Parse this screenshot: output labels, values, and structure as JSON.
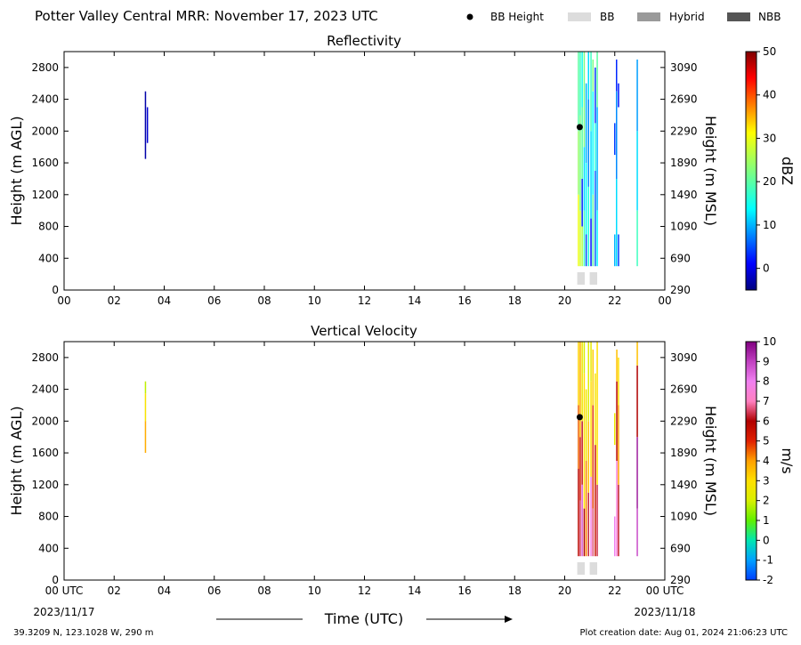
{
  "header": {
    "title": "Potter Valley Central MRR:  November 17, 2023 UTC"
  },
  "legend": {
    "items": [
      {
        "label": "BB Height",
        "color": "#000000",
        "kind": "dot"
      },
      {
        "label": "BB",
        "color": "#dcdcdc",
        "kind": "patch"
      },
      {
        "label": "Hybrid",
        "color": "#9a9a9a",
        "kind": "patch"
      },
      {
        "label": "NBB",
        "color": "#555555",
        "kind": "patch"
      }
    ]
  },
  "footer": {
    "location": "39.3209 N, 123.1028 W, 290 m",
    "creation": "Plot creation date: Aug 01, 2024 21:06:23 UTC",
    "time_label": "Time (UTC)",
    "start_date": "2023/11/17",
    "end_date": "2023/11/18"
  },
  "chart_data": [
    {
      "type": "heatmap",
      "title": "Reflectivity",
      "ylabel": "Height (m AGL)",
      "ylabel_right": "Height (m MSL)",
      "x_ticks": [
        "00",
        "02",
        "04",
        "06",
        "08",
        "10",
        "12",
        "14",
        "16",
        "18",
        "20",
        "22",
        "00"
      ],
      "xlim_hours": [
        0,
        24
      ],
      "ylim": [
        0,
        3000
      ],
      "y_ticks": [
        0,
        400,
        800,
        1200,
        1600,
        2000,
        2400,
        2800
      ],
      "y_ticks_right": [
        "290",
        "690",
        "1090",
        "1490",
        "1890",
        "2290",
        "2690",
        "3090"
      ],
      "colorbar": {
        "label": "dBZ",
        "min": -5,
        "max": 50,
        "ticks": [
          0,
          10,
          20,
          30,
          40,
          50
        ],
        "colormap": "jet"
      },
      "bright_band_height": {
        "hour": 20.6,
        "height": 2050
      },
      "bb_class_markers": [
        {
          "hour_start": 20.5,
          "hour_end": 20.8,
          "class": "BB"
        },
        {
          "hour_start": 21.0,
          "hour_end": 21.3,
          "class": "BB"
        }
      ],
      "profiles": [
        {
          "hour": 3.25,
          "width_h": 0.05,
          "segments": [
            {
              "y0": 1650,
              "y1": 2500,
              "value": -3
            }
          ]
        },
        {
          "hour": 3.33,
          "width_h": 0.04,
          "segments": [
            {
              "y0": 1850,
              "y1": 2300,
              "value": -1
            }
          ]
        },
        {
          "hour": 20.55,
          "width_h": 0.05,
          "segments": [
            {
              "y0": 300,
              "y1": 1200,
              "value": 30
            },
            {
              "y0": 1200,
              "y1": 2000,
              "value": 24
            },
            {
              "y0": 2000,
              "y1": 3000,
              "value": 20
            }
          ]
        },
        {
          "hour": 20.62,
          "width_h": 0.05,
          "segments": [
            {
              "y0": 300,
              "y1": 1000,
              "value": 28
            },
            {
              "y0": 1000,
              "y1": 2200,
              "value": 22
            },
            {
              "y0": 2200,
              "y1": 3000,
              "value": 18
            }
          ]
        },
        {
          "hour": 20.7,
          "width_h": 0.05,
          "segments": [
            {
              "y0": 300,
              "y1": 800,
              "value": 26
            },
            {
              "y0": 800,
              "y1": 1400,
              "value": 3
            },
            {
              "y0": 1400,
              "y1": 2300,
              "value": 20
            },
            {
              "y0": 2300,
              "y1": 3000,
              "value": 15
            }
          ]
        },
        {
          "hour": 20.78,
          "width_h": 0.05,
          "segments": [
            {
              "y0": 300,
              "y1": 1000,
              "value": 18
            },
            {
              "y0": 1000,
              "y1": 1800,
              "value": 12
            },
            {
              "y0": 1800,
              "y1": 3000,
              "value": 22
            }
          ]
        },
        {
          "hour": 20.86,
          "width_h": 0.05,
          "segments": [
            {
              "y0": 300,
              "y1": 700,
              "value": 5
            },
            {
              "y0": 700,
              "y1": 1600,
              "value": 14
            },
            {
              "y0": 1600,
              "y1": 2600,
              "value": 10
            }
          ]
        },
        {
          "hour": 20.95,
          "width_h": 0.05,
          "segments": [
            {
              "y0": 300,
              "y1": 1300,
              "value": 16
            },
            {
              "y0": 1300,
              "y1": 2400,
              "value": 8
            },
            {
              "y0": 2400,
              "y1": 3000,
              "value": 12
            }
          ]
        },
        {
          "hour": 21.05,
          "width_h": 0.05,
          "segments": [
            {
              "y0": 300,
              "y1": 900,
              "value": 2
            },
            {
              "y0": 900,
              "y1": 2000,
              "value": 12
            },
            {
              "y0": 2000,
              "y1": 3000,
              "value": 18
            }
          ]
        },
        {
          "hour": 21.13,
          "width_h": 0.05,
          "segments": [
            {
              "y0": 300,
              "y1": 1200,
              "value": 20
            },
            {
              "y0": 1200,
              "y1": 2500,
              "value": 14
            },
            {
              "y0": 2500,
              "y1": 2900,
              "value": 22
            }
          ]
        },
        {
          "hour": 21.22,
          "width_h": 0.05,
          "segments": [
            {
              "y0": 300,
              "y1": 1500,
              "value": 6
            },
            {
              "y0": 1500,
              "y1": 2100,
              "value": 16
            },
            {
              "y0": 2100,
              "y1": 2800,
              "value": 4
            }
          ]
        },
        {
          "hour": 21.3,
          "width_h": 0.05,
          "segments": [
            {
              "y0": 300,
              "y1": 1000,
              "value": 14
            },
            {
              "y0": 1000,
              "y1": 2300,
              "value": 10
            },
            {
              "y0": 2300,
              "y1": 3000,
              "value": 20
            }
          ]
        },
        {
          "hour": 22.0,
          "width_h": 0.05,
          "segments": [
            {
              "y0": 300,
              "y1": 700,
              "value": 10
            },
            {
              "y0": 1700,
              "y1": 2100,
              "value": 4
            }
          ]
        },
        {
          "hour": 22.07,
          "width_h": 0.05,
          "segments": [
            {
              "y0": 300,
              "y1": 1400,
              "value": 12
            },
            {
              "y0": 1400,
              "y1": 2500,
              "value": 8
            },
            {
              "y0": 2500,
              "y1": 2900,
              "value": 3
            }
          ]
        },
        {
          "hour": 22.15,
          "width_h": 0.05,
          "segments": [
            {
              "y0": 300,
              "y1": 700,
              "value": 4
            },
            {
              "y0": 2300,
              "y1": 2600,
              "value": 2
            }
          ]
        },
        {
          "hour": 22.9,
          "width_h": 0.05,
          "segments": [
            {
              "y0": 300,
              "y1": 1000,
              "value": 18
            },
            {
              "y0": 1000,
              "y1": 2000,
              "value": 12
            },
            {
              "y0": 2000,
              "y1": 2900,
              "value": 9
            }
          ]
        }
      ]
    },
    {
      "type": "heatmap",
      "title": "Vertical Velocity",
      "ylabel": "Height (m AGL)",
      "ylabel_right": "Height (m MSL)",
      "x_ticks": [
        "00 UTC",
        "02",
        "04",
        "06",
        "08",
        "10",
        "12",
        "14",
        "16",
        "18",
        "20",
        "22",
        "00 UTC"
      ],
      "xlim_hours": [
        0,
        24
      ],
      "ylim": [
        0,
        3000
      ],
      "y_ticks": [
        0,
        400,
        800,
        1200,
        1600,
        2000,
        2400,
        2800
      ],
      "y_ticks_right": [
        "290",
        "690",
        "1090",
        "1490",
        "1890",
        "2290",
        "2690",
        "3090"
      ],
      "colorbar": {
        "label": "m/s",
        "min": -2,
        "max": 10,
        "ticks": [
          -2,
          -1,
          0,
          1,
          2,
          3,
          4,
          5,
          6,
          7,
          8,
          9,
          10
        ],
        "colormap": "velocity"
      },
      "bright_band_height": {
        "hour": 20.6,
        "height": 2050
      },
      "bb_class_markers": [
        {
          "hour_start": 20.5,
          "hour_end": 20.8,
          "class": "BB"
        },
        {
          "hour_start": 21.0,
          "hour_end": 21.3,
          "class": "BB"
        }
      ],
      "profiles": [
        {
          "hour": 3.25,
          "width_h": 0.05,
          "segments": [
            {
              "y0": 1600,
              "y1": 2000,
              "value": 3.8
            },
            {
              "y0": 2000,
              "y1": 2350,
              "value": 2.8
            },
            {
              "y0": 2350,
              "y1": 2500,
              "value": 1.8
            }
          ]
        },
        {
          "hour": 20.55,
          "width_h": 0.05,
          "segments": [
            {
              "y0": 300,
              "y1": 1400,
              "value": 5.8
            },
            {
              "y0": 1400,
              "y1": 2200,
              "value": 4.5
            },
            {
              "y0": 2200,
              "y1": 3000,
              "value": 3.2
            }
          ]
        },
        {
          "hour": 20.62,
          "width_h": 0.05,
          "segments": [
            {
              "y0": 300,
              "y1": 1000,
              "value": 6.5
            },
            {
              "y0": 1000,
              "y1": 1800,
              "value": 5.2
            },
            {
              "y0": 1800,
              "y1": 3000,
              "value": 3.8
            }
          ]
        },
        {
          "hour": 20.7,
          "width_h": 0.05,
          "segments": [
            {
              "y0": 300,
              "y1": 1200,
              "value": 8.5
            },
            {
              "y0": 1200,
              "y1": 2000,
              "value": 6.2
            },
            {
              "y0": 2000,
              "y1": 3000,
              "value": 2.5
            }
          ]
        },
        {
          "hour": 20.78,
          "width_h": 0.05,
          "segments": [
            {
              "y0": 300,
              "y1": 900,
              "value": 6.0
            },
            {
              "y0": 900,
              "y1": 2600,
              "value": 3.0
            },
            {
              "y0": 2600,
              "y1": 3000,
              "value": 2.0
            }
          ]
        },
        {
          "hour": 20.86,
          "width_h": 0.05,
          "segments": [
            {
              "y0": 300,
              "y1": 1500,
              "value": 4.2
            },
            {
              "y0": 1500,
              "y1": 2400,
              "value": 2.6
            }
          ]
        },
        {
          "hour": 20.95,
          "width_h": 0.05,
          "segments": [
            {
              "y0": 300,
              "y1": 1100,
              "value": 6.3
            },
            {
              "y0": 1100,
              "y1": 2000,
              "value": 3.5
            },
            {
              "y0": 2000,
              "y1": 3000,
              "value": 2.2
            }
          ]
        },
        {
          "hour": 21.05,
          "width_h": 0.05,
          "segments": [
            {
              "y0": 300,
              "y1": 1300,
              "value": 7.8
            },
            {
              "y0": 1300,
              "y1": 2500,
              "value": 3.0
            },
            {
              "y0": 2500,
              "y1": 3000,
              "value": 2.4
            }
          ]
        },
        {
          "hour": 21.13,
          "width_h": 0.05,
          "segments": [
            {
              "y0": 300,
              "y1": 900,
              "value": 6.6
            },
            {
              "y0": 900,
              "y1": 2200,
              "value": 4.8
            },
            {
              "y0": 2200,
              "y1": 2900,
              "value": 3.3
            }
          ]
        },
        {
          "hour": 21.22,
          "width_h": 0.05,
          "segments": [
            {
              "y0": 300,
              "y1": 1700,
              "value": 5.5
            },
            {
              "y0": 1700,
              "y1": 2600,
              "value": 2.8
            }
          ]
        },
        {
          "hour": 21.3,
          "width_h": 0.05,
          "segments": [
            {
              "y0": 300,
              "y1": 1200,
              "value": 6.4
            },
            {
              "y0": 1200,
              "y1": 3000,
              "value": 3.0
            }
          ]
        },
        {
          "hour": 22.0,
          "width_h": 0.05,
          "segments": [
            {
              "y0": 300,
              "y1": 800,
              "value": 8.0
            },
            {
              "y0": 1700,
              "y1": 2100,
              "value": 2.5
            }
          ]
        },
        {
          "hour": 22.08,
          "width_h": 0.05,
          "segments": [
            {
              "y0": 300,
              "y1": 1500,
              "value": 7.5
            },
            {
              "y0": 1500,
              "y1": 2500,
              "value": 5.8
            },
            {
              "y0": 2500,
              "y1": 2900,
              "value": 3.5
            }
          ]
        },
        {
          "hour": 22.15,
          "width_h": 0.05,
          "segments": [
            {
              "y0": 300,
              "y1": 1200,
              "value": 6.2
            },
            {
              "y0": 1200,
              "y1": 2200,
              "value": 4.0
            },
            {
              "y0": 2200,
              "y1": 2800,
              "value": 3.0
            }
          ]
        },
        {
          "hour": 22.9,
          "width_h": 0.05,
          "segments": [
            {
              "y0": 300,
              "y1": 900,
              "value": 8.8
            },
            {
              "y0": 900,
              "y1": 1800,
              "value": 9.5
            },
            {
              "y0": 1800,
              "y1": 2700,
              "value": 6.0
            },
            {
              "y0": 2700,
              "y1": 3000,
              "value": 3.5
            }
          ]
        }
      ]
    }
  ]
}
